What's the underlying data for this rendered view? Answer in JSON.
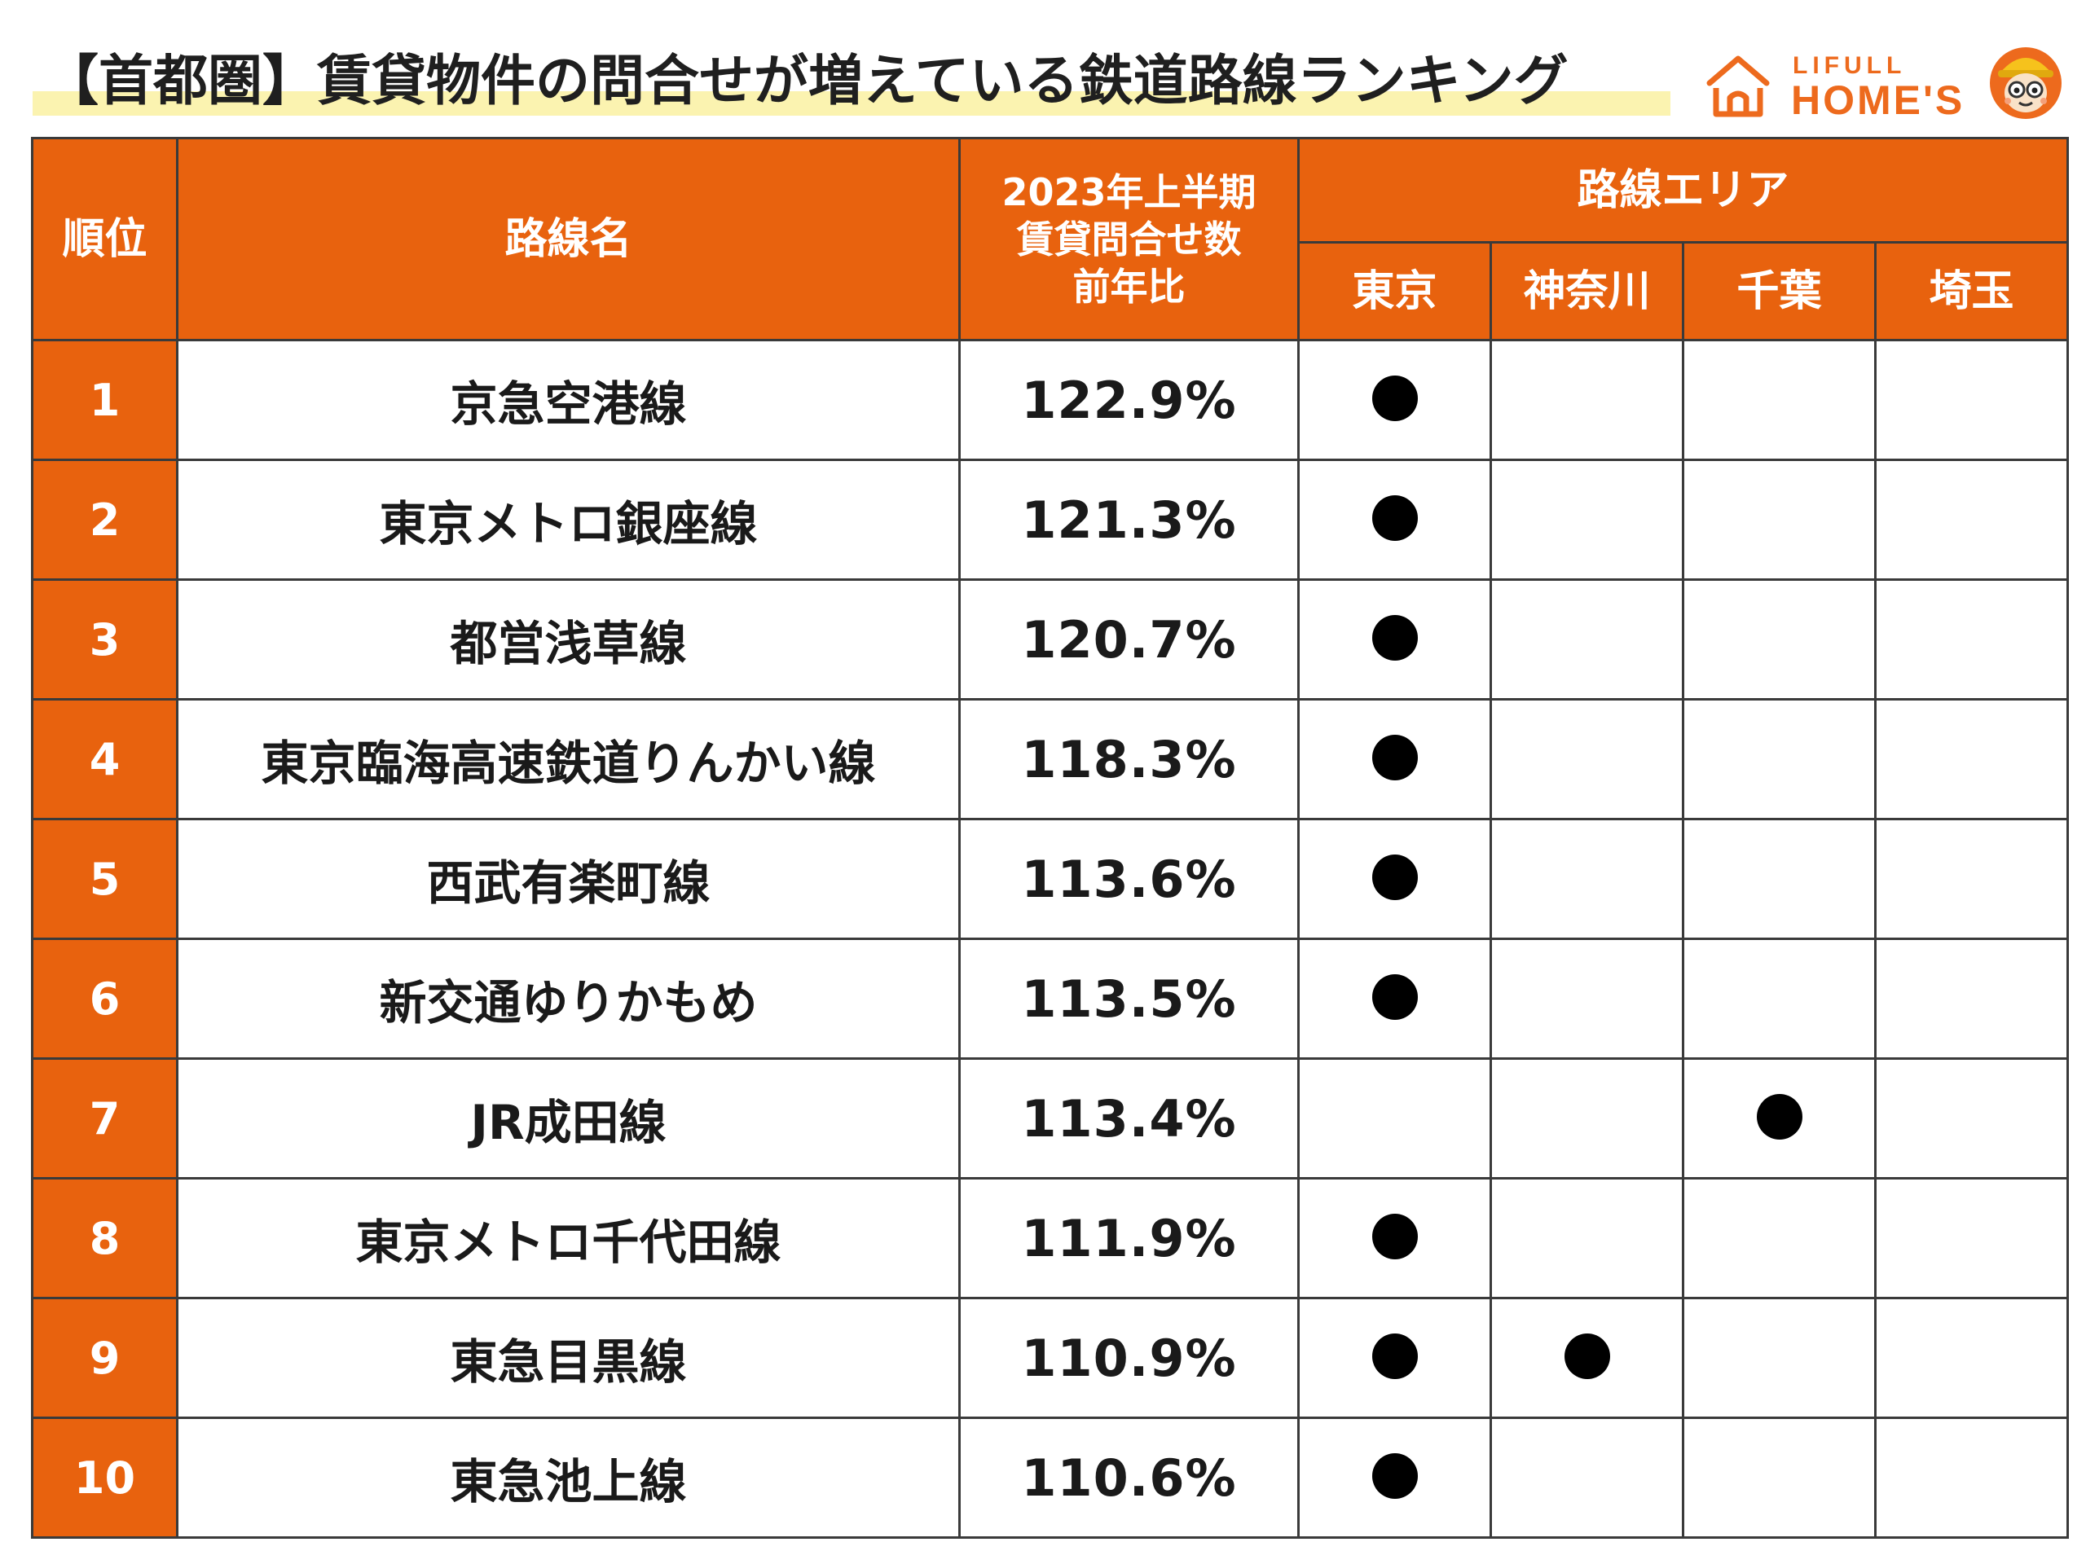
{
  "title": "【首都圏】賃貸物件の問合せが増えている鉄道路線ランキング",
  "logo": {
    "top": "LIFULL",
    "main": "HOME'S"
  },
  "colors": {
    "header": "#e8620e",
    "highlight": "#fbf3b0",
    "logo": "#ed6a1d",
    "dot": "#000000"
  },
  "table": {
    "headers": {
      "rank": "順位",
      "name": "路線名",
      "ratio_line1": "2023年上半期",
      "ratio_line2": "賃貸問合せ数",
      "ratio_line3": "前年比",
      "area": "路線エリア",
      "areas": [
        "東京",
        "神奈川",
        "千葉",
        "埼玉"
      ]
    },
    "rows": [
      {
        "rank": "1",
        "name": "京急空港線",
        "ratio": "122.9%",
        "areas": [
          true,
          false,
          false,
          false
        ]
      },
      {
        "rank": "2",
        "name": "東京メトロ銀座線",
        "ratio": "121.3%",
        "areas": [
          true,
          false,
          false,
          false
        ]
      },
      {
        "rank": "3",
        "name": "都営浅草線",
        "ratio": "120.7%",
        "areas": [
          true,
          false,
          false,
          false
        ]
      },
      {
        "rank": "4",
        "name": "東京臨海高速鉄道りんかい線",
        "ratio": "118.3%",
        "areas": [
          true,
          false,
          false,
          false
        ]
      },
      {
        "rank": "5",
        "name": "西武有楽町線",
        "ratio": "113.6%",
        "areas": [
          true,
          false,
          false,
          false
        ]
      },
      {
        "rank": "6",
        "name": "新交通ゆりかもめ",
        "ratio": "113.5%",
        "areas": [
          true,
          false,
          false,
          false
        ]
      },
      {
        "rank": "7",
        "name": "JR成田線",
        "ratio": "113.4%",
        "areas": [
          false,
          false,
          true,
          false
        ]
      },
      {
        "rank": "8",
        "name": "東京メトロ千代田線",
        "ratio": "111.9%",
        "areas": [
          true,
          false,
          false,
          false
        ]
      },
      {
        "rank": "9",
        "name": "東急目黒線",
        "ratio": "110.9%",
        "areas": [
          true,
          true,
          false,
          false
        ]
      },
      {
        "rank": "10",
        "name": "東急池上線",
        "ratio": "110.6%",
        "areas": [
          true,
          false,
          false,
          false
        ]
      }
    ]
  },
  "chart_data": {
    "type": "table",
    "title": "【首都圏】賃貸物件の問合せが増えている鉄道路線ランキング",
    "columns": [
      "順位",
      "路線名",
      "2023年上半期 賃貸問合せ数 前年比",
      "東京",
      "神奈川",
      "千葉",
      "埼玉"
    ],
    "categories": [
      "京急空港線",
      "東京メトロ銀座線",
      "都営浅草線",
      "東京臨海高速鉄道りんかい線",
      "西武有楽町線",
      "新交通ゆりかもめ",
      "JR成田線",
      "東京メトロ千代田線",
      "東急目黒線",
      "東急池上線"
    ],
    "values": [
      122.9,
      121.3,
      120.7,
      118.3,
      113.6,
      113.5,
      113.4,
      111.9,
      110.9,
      110.6
    ],
    "area_marks": {
      "東京": [
        1,
        1,
        1,
        1,
        1,
        1,
        0,
        1,
        1,
        1
      ],
      "神奈川": [
        0,
        0,
        0,
        0,
        0,
        0,
        0,
        0,
        1,
        0
      ],
      "千葉": [
        0,
        0,
        0,
        0,
        0,
        0,
        1,
        0,
        0,
        0
      ],
      "埼玉": [
        0,
        0,
        0,
        0,
        0,
        0,
        0,
        0,
        0,
        0
      ]
    }
  }
}
